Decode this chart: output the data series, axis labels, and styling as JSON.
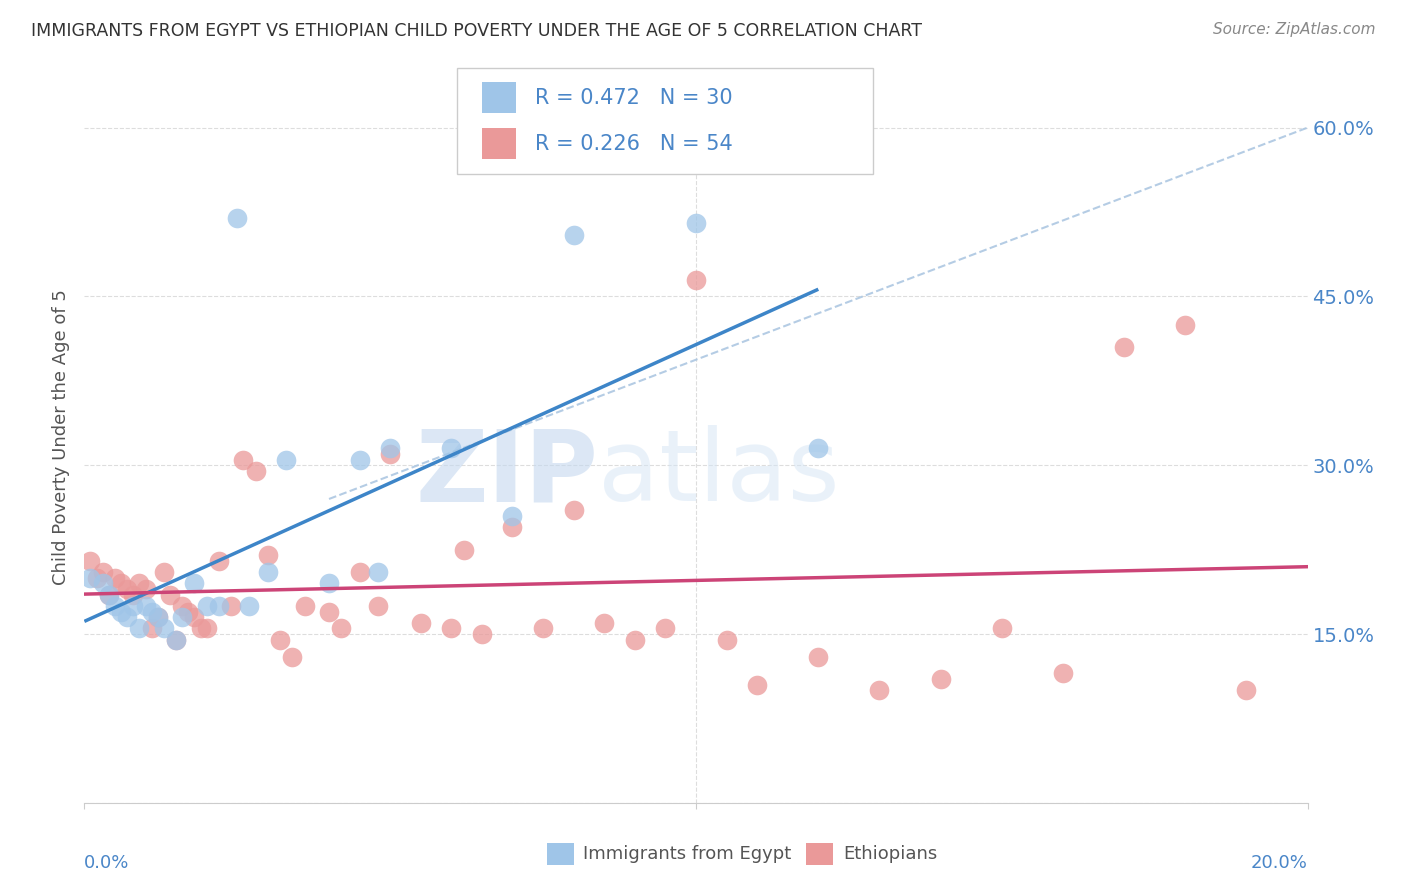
{
  "title": "IMMIGRANTS FROM EGYPT VS ETHIOPIAN CHILD POVERTY UNDER THE AGE OF 5 CORRELATION CHART",
  "source": "Source: ZipAtlas.com",
  "ylabel": "Child Poverty Under the Age of 5",
  "legend_label1": "Immigrants from Egypt",
  "legend_label2": "Ethiopians",
  "R1": 0.472,
  "N1": 30,
  "R2": 0.226,
  "N2": 54,
  "color_egypt": "#9fc5e8",
  "color_ethiopian": "#ea9999",
  "color_egypt_line": "#3d85c8",
  "color_ethiopian_line": "#cc4477",
  "color_dash": "#9fc5e8",
  "xlim": [
    0.0,
    0.2
  ],
  "ylim": [
    0.0,
    0.65
  ],
  "yticks": [
    0.15,
    0.3,
    0.45,
    0.6
  ],
  "ytick_labels": [
    "15.0%",
    "30.0%",
    "45.0%",
    "60.0%"
  ],
  "xtick_labels": [
    "0.0%",
    "20.0%"
  ],
  "egypt_x": [
    0.001,
    0.003,
    0.004,
    0.005,
    0.006,
    0.007,
    0.008,
    0.009,
    0.01,
    0.011,
    0.012,
    0.013,
    0.015,
    0.016,
    0.018,
    0.02,
    0.022,
    0.025,
    0.027,
    0.03,
    0.033,
    0.04,
    0.045,
    0.048,
    0.05,
    0.06,
    0.07,
    0.08,
    0.1,
    0.12
  ],
  "egypt_y": [
    0.2,
    0.195,
    0.185,
    0.175,
    0.17,
    0.165,
    0.175,
    0.155,
    0.175,
    0.17,
    0.165,
    0.155,
    0.145,
    0.165,
    0.195,
    0.175,
    0.175,
    0.52,
    0.175,
    0.205,
    0.305,
    0.195,
    0.305,
    0.205,
    0.315,
    0.315,
    0.255,
    0.505,
    0.515,
    0.315
  ],
  "ethiopian_x": [
    0.001,
    0.002,
    0.003,
    0.004,
    0.005,
    0.006,
    0.007,
    0.008,
    0.009,
    0.01,
    0.011,
    0.012,
    0.013,
    0.014,
    0.015,
    0.016,
    0.017,
    0.018,
    0.019,
    0.02,
    0.022,
    0.024,
    0.026,
    0.028,
    0.03,
    0.032,
    0.034,
    0.036,
    0.04,
    0.042,
    0.045,
    0.048,
    0.05,
    0.055,
    0.06,
    0.062,
    0.065,
    0.07,
    0.075,
    0.08,
    0.085,
    0.09,
    0.095,
    0.1,
    0.105,
    0.11,
    0.12,
    0.13,
    0.14,
    0.15,
    0.16,
    0.17,
    0.18,
    0.19
  ],
  "ethiopian_y": [
    0.215,
    0.2,
    0.205,
    0.185,
    0.2,
    0.195,
    0.19,
    0.185,
    0.195,
    0.19,
    0.155,
    0.165,
    0.205,
    0.185,
    0.145,
    0.175,
    0.17,
    0.165,
    0.155,
    0.155,
    0.215,
    0.175,
    0.305,
    0.295,
    0.22,
    0.145,
    0.13,
    0.175,
    0.17,
    0.155,
    0.205,
    0.175,
    0.31,
    0.16,
    0.155,
    0.225,
    0.15,
    0.245,
    0.155,
    0.26,
    0.16,
    0.145,
    0.155,
    0.465,
    0.145,
    0.105,
    0.13,
    0.1,
    0.11,
    0.155,
    0.115,
    0.405,
    0.425,
    0.1
  ],
  "watermark_zip": "ZIP",
  "watermark_atlas": "atlas",
  "bg_color": "#ffffff",
  "grid_color": "#dddddd",
  "right_axis_color": "#4a86c8"
}
